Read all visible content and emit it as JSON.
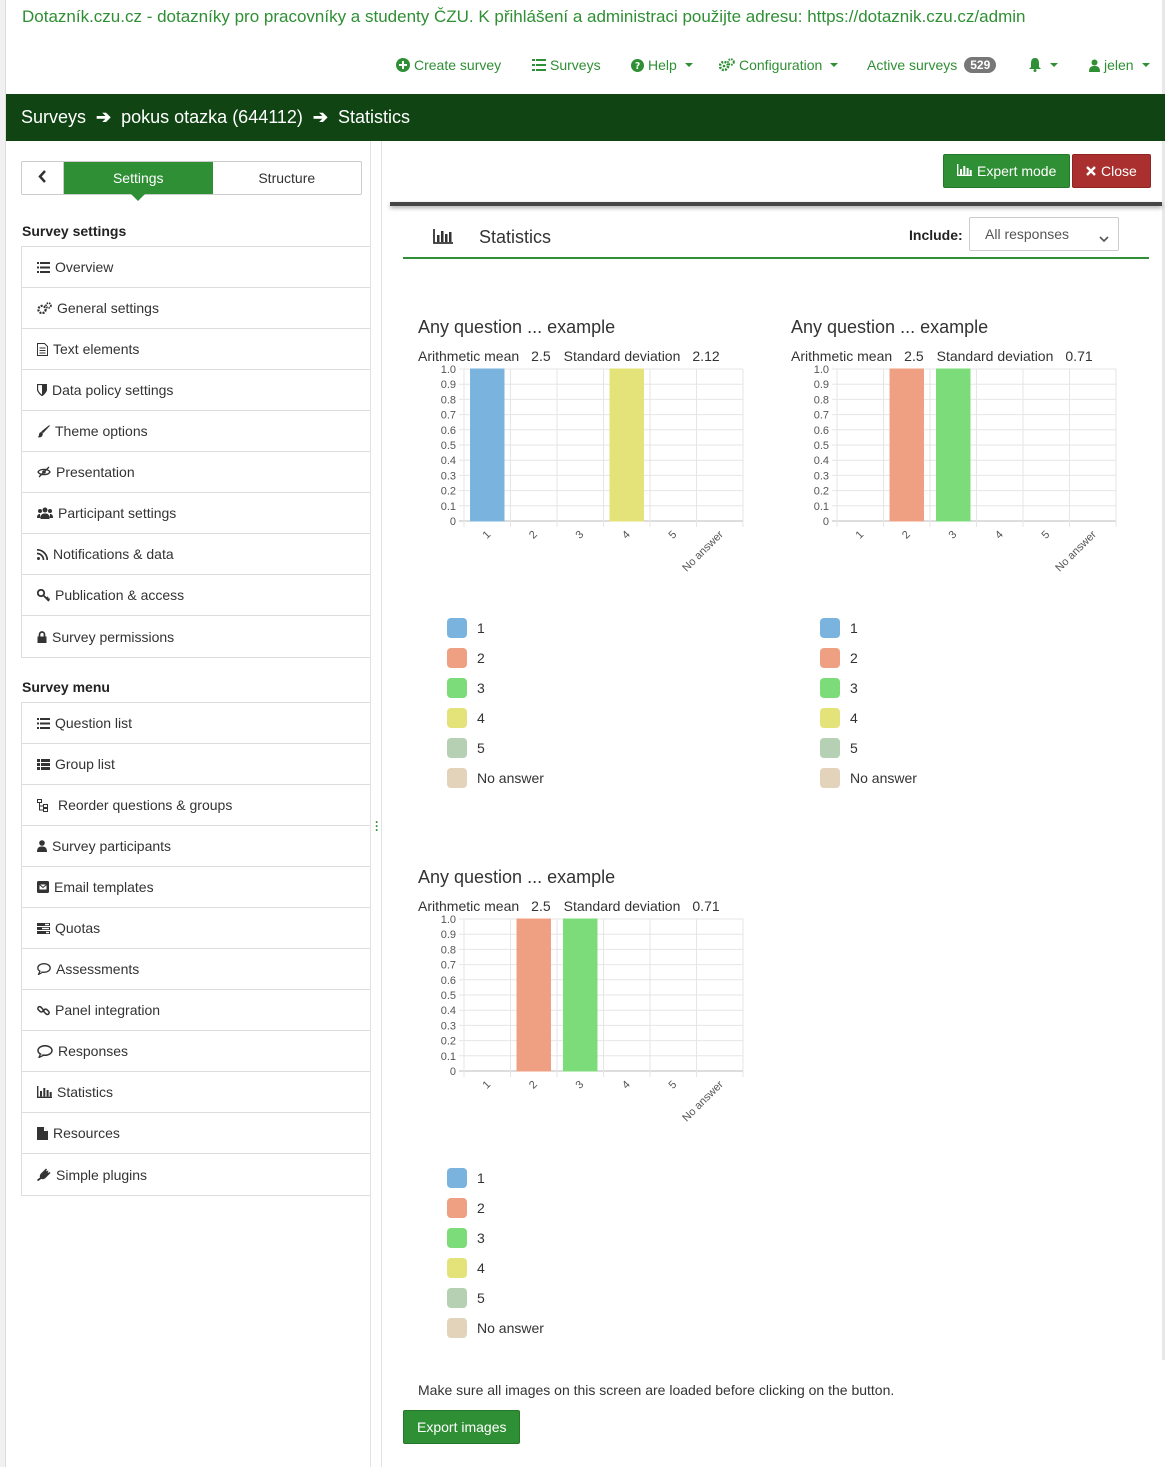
{
  "site_title": "Dotazník.czu.cz - dotazníky pro pracovníky a studenty ČZU. K přihlášení a administraci použijte adresu: https://dotaznik.czu.cz/admin",
  "topnav": {
    "create_survey": "Create survey",
    "surveys": "Surveys",
    "help": "Help",
    "configuration": "Configuration",
    "active_surveys": "Active surveys",
    "active_count": "529",
    "user": "jelen"
  },
  "breadcrumb": {
    "surveys": "Surveys",
    "survey_name": "pokus otazka (644112)",
    "current": "Statistics"
  },
  "sidebar": {
    "tabs": {
      "settings": "Settings",
      "structure": "Structure"
    },
    "survey_settings_title": "Survey settings",
    "settings_items": [
      "Overview",
      "General settings",
      "Text elements",
      "Data policy settings",
      "Theme options",
      "Presentation",
      "Participant settings",
      "Notifications & data",
      "Publication & access",
      "Survey permissions"
    ],
    "survey_menu_title": "Survey menu",
    "menu_items": [
      "Question list",
      "Group list",
      "Reorder questions & groups",
      "Survey participants",
      "Email templates",
      "Quotas",
      "Assessments",
      "Panel integration",
      "Responses",
      "Statistics",
      "Resources",
      "Simple plugins"
    ]
  },
  "toolbar": {
    "expert_mode": "Expert mode",
    "close": "Close"
  },
  "stats": {
    "title": "Statistics",
    "include_label": "Include:",
    "include_value": "All responses"
  },
  "colors": {
    "accent": "#2f8f34",
    "header_bg": "#104513",
    "close": "#a9302f",
    "series": [
      "#7ab3de",
      "#efa083",
      "#7cdc7a",
      "#e3e37a",
      "#b5d0b3",
      "#e3d3bb"
    ]
  },
  "chart_data": [
    {
      "type": "bar",
      "title": "Any question ... example",
      "mean_label": "Arithmetic mean",
      "mean": "2.5",
      "sd_label": "Standard deviation",
      "sd": "2.12",
      "categories": [
        "1",
        "2",
        "3",
        "4",
        "5",
        "No answer"
      ],
      "values": [
        1,
        0,
        0,
        1,
        0,
        0
      ],
      "yticks": [
        "1.0",
        "0.9",
        "0.8",
        "0.7",
        "0.6",
        "0.5",
        "0.4",
        "0.3",
        "0.2",
        "0.1",
        "0"
      ],
      "ylim": [
        0,
        1
      ],
      "legend": [
        "1",
        "2",
        "3",
        "4",
        "5",
        "No answer"
      ],
      "grid": true
    },
    {
      "type": "bar",
      "title": "Any question ... example",
      "mean_label": "Arithmetic mean",
      "mean": "2.5",
      "sd_label": "Standard deviation",
      "sd": "0.71",
      "categories": [
        "1",
        "2",
        "3",
        "4",
        "5",
        "No answer"
      ],
      "values": [
        0,
        1,
        1,
        0,
        0,
        0
      ],
      "yticks": [
        "1.0",
        "0.9",
        "0.8",
        "0.7",
        "0.6",
        "0.5",
        "0.4",
        "0.3",
        "0.2",
        "0.1",
        "0"
      ],
      "ylim": [
        0,
        1
      ],
      "legend": [
        "1",
        "2",
        "3",
        "4",
        "5",
        "No answer"
      ],
      "grid": true
    },
    {
      "type": "bar",
      "title": "Any question ... example",
      "mean_label": "Arithmetic mean",
      "mean": "2.5",
      "sd_label": "Standard deviation",
      "sd": "0.71",
      "categories": [
        "1",
        "2",
        "3",
        "4",
        "5",
        "No answer"
      ],
      "values": [
        0,
        1,
        1,
        0,
        0,
        0
      ],
      "yticks": [
        "1.0",
        "0.9",
        "0.8",
        "0.7",
        "0.6",
        "0.5",
        "0.4",
        "0.3",
        "0.2",
        "0.1",
        "0"
      ],
      "ylim": [
        0,
        1
      ],
      "legend": [
        "1",
        "2",
        "3",
        "4",
        "5",
        "No answer"
      ],
      "grid": true
    }
  ],
  "export": {
    "note": "Make sure all images on this screen are loaded before clicking on the button.",
    "button": "Export images"
  }
}
